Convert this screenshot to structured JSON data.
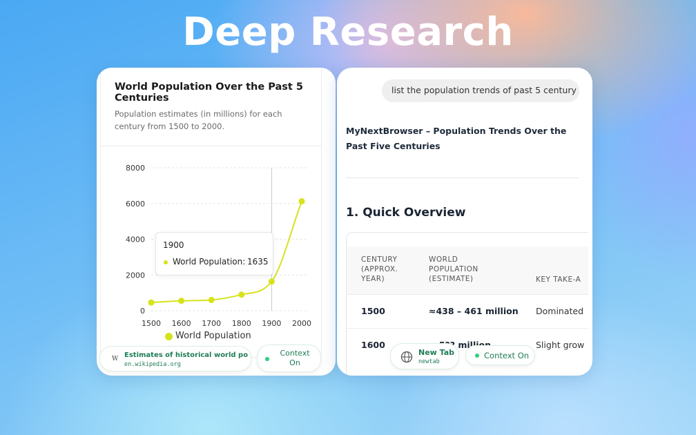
{
  "headline": "Deep Research",
  "chart_panel": {
    "title": "World Population Over the Past 5 Centuries",
    "subtitle": "Population estimates (in millions) for each century from 1500 to 2000.",
    "tooltip": {
      "year": "1900",
      "series_label": "World Population:",
      "value": "1635"
    },
    "legend_label": "World Population"
  },
  "chart_data": {
    "type": "line",
    "title": "World Population Over the Past 5 Centuries",
    "subtitle": "Population estimates (in millions) for each century from 1500 to 2000.",
    "x": [
      1500,
      1600,
      1700,
      1800,
      1900,
      2000
    ],
    "series": [
      {
        "name": "World Population",
        "values": [
          461,
          554,
          603,
          900,
          1635,
          6127
        ]
      }
    ],
    "x_ticks": [
      "1500",
      "1600",
      "1700",
      "1800",
      "1900",
      "2000"
    ],
    "y_ticks": [
      "0",
      "2000",
      "4000",
      "6000",
      "8000"
    ],
    "ylim": [
      0,
      8000
    ],
    "grid": "horizontal dashed",
    "legend": "bottom",
    "highlight_x": 1900,
    "colors": {
      "series": "#d6e31b",
      "grid": "#e3e3e3",
      "cursor": "#c9c9c9"
    }
  },
  "source_chip": {
    "icon_glyph": "W",
    "title": "Estimates of historical world po...",
    "url": "en.wikipedia.org"
  },
  "context_chip_left": {
    "label": "Context On"
  },
  "right_panel": {
    "query": "list the population trends of past 5 century",
    "doc_title": "MyNextBrowser – Population Trends Over the Past Five Centuries",
    "section_heading": "1. Quick Overview",
    "table": {
      "headers": [
        "CENTURY (APPROX. YEAR)",
        "WORLD POPULATION (ESTIMATE)",
        "KEY TAKE-A"
      ],
      "rows": [
        {
          "century": "1500",
          "population": "≈438 – 461 million",
          "key": "Dominated"
        },
        {
          "century": "1600",
          "population": "≈ 5?? million",
          "key": "Slight grow"
        }
      ]
    },
    "new_tab_chip": {
      "label": "New Tab",
      "sub": "newtab",
      "icon": "globe-icon"
    },
    "context_chip": {
      "label": "Context On"
    }
  },
  "colors": {
    "accent_green": "#1e7d55",
    "status_dot": "#2ecf7a",
    "chart_line": "#d6e31b"
  }
}
